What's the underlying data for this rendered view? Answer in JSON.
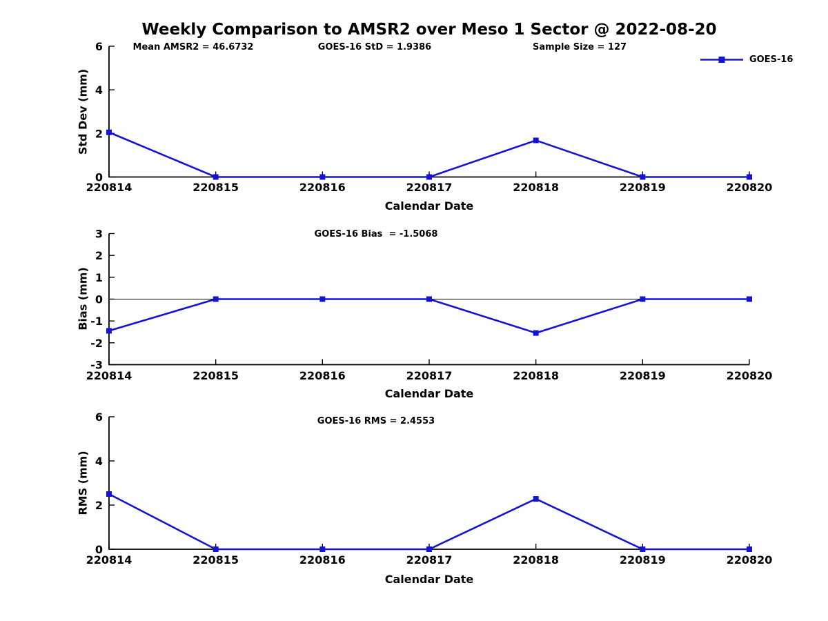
{
  "title": "Weekly Comparison to AMSR2 over Meso 1 Sector @ 2022-08-20",
  "legend": {
    "label": "GOES-16",
    "position": "top-right"
  },
  "stats": {
    "mean_amsr2": 46.6732,
    "goes16_std": 1.9386,
    "sample_size": 127,
    "goes16_bias": -1.5068,
    "goes16_rms": 2.4553
  },
  "colors": {
    "line": "#1414d6",
    "axis": "#000000",
    "text": "#000000",
    "background": "#ffffff"
  },
  "chart_data": [
    {
      "type": "line",
      "categories": [
        "220814",
        "220815",
        "220816",
        "220817",
        "220818",
        "220819",
        "220820"
      ],
      "series": [
        {
          "name": "GOES-16",
          "values": [
            2.05,
            0,
            0,
            0,
            1.68,
            0,
            0
          ]
        }
      ],
      "xlabel": "Calendar Date",
      "ylabel": "Std Dev (mm)",
      "ylim": [
        0,
        6
      ],
      "yticks": [
        0,
        2,
        4,
        6
      ],
      "zero_line": false,
      "grid": false,
      "marker": "square",
      "annotations": [
        "Mean AMSR2 = 46.6732",
        "GOES-16 StD = 1.9386",
        "Sample Size = 127"
      ]
    },
    {
      "type": "line",
      "categories": [
        "220814",
        "220815",
        "220816",
        "220817",
        "220818",
        "220819",
        "220820"
      ],
      "series": [
        {
          "name": "GOES-16",
          "values": [
            -1.45,
            0,
            0,
            0,
            -1.55,
            0,
            0
          ]
        }
      ],
      "xlabel": "Calendar Date",
      "ylabel": "Bias (mm)",
      "ylim": [
        -3,
        3
      ],
      "yticks": [
        -3,
        -2,
        -1,
        0,
        1,
        2,
        3
      ],
      "zero_line": true,
      "grid": false,
      "marker": "square",
      "annotations": [
        "GOES-16 Bias  = -1.5068"
      ]
    },
    {
      "type": "line",
      "categories": [
        "220814",
        "220815",
        "220816",
        "220817",
        "220818",
        "220819",
        "220820"
      ],
      "series": [
        {
          "name": "GOES-16",
          "values": [
            2.5,
            0,
            0,
            0,
            2.28,
            0,
            0
          ]
        }
      ],
      "xlabel": "Calendar Date",
      "ylabel": "RMS (mm)",
      "ylim": [
        0,
        6
      ],
      "yticks": [
        0,
        2,
        4,
        6
      ],
      "zero_line": false,
      "grid": false,
      "marker": "square",
      "annotations": [
        "GOES-16 RMS = 2.4553"
      ]
    }
  ]
}
